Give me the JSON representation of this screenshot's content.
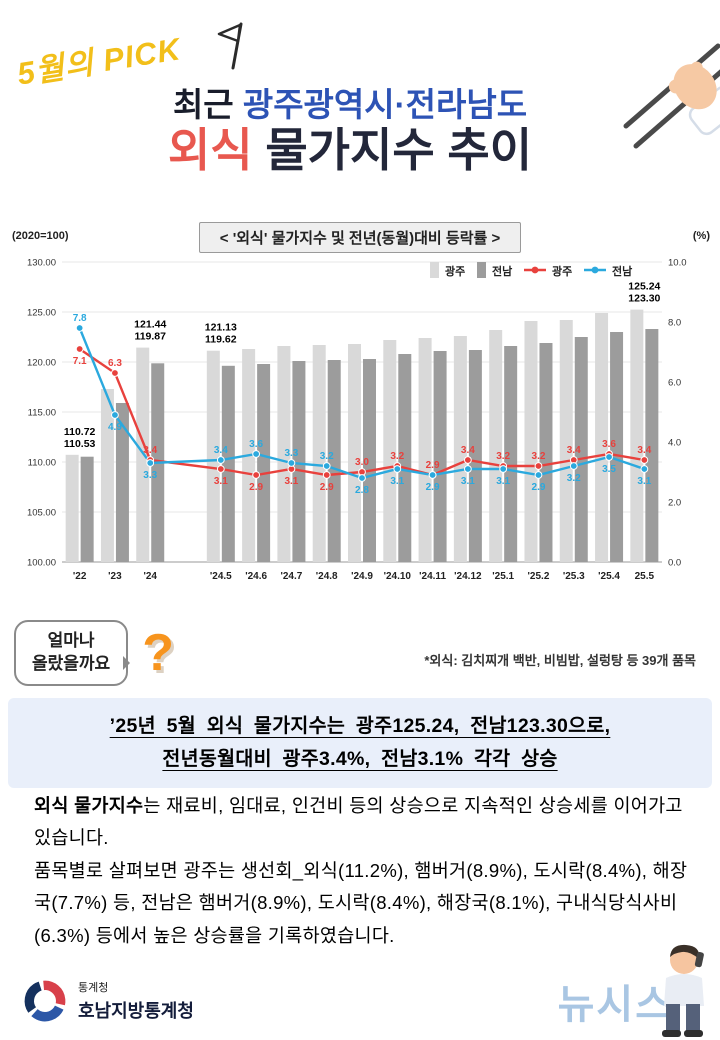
{
  "badge": {
    "text": "5월의 PICK"
  },
  "title": {
    "line1_prefix": "최근 ",
    "line1_highlight": "광주광역시·전라남도",
    "line2_highlight": "외식",
    "line2_rest": " 물가지수 추이"
  },
  "chart": {
    "unit_left": "(2020=100)",
    "unit_right": "(%)",
    "box_title": "< '외식' 물가지수 및 전년(동월)대비 등락률 >"
  },
  "chart_data": {
    "type": "bar+line",
    "title": "'외식' 물가지수 및 전년(동월)대비 등락률",
    "categories": [
      "'22",
      "'23",
      "'24",
      "'24.5",
      "'24.6",
      "'24.7",
      "'24.8",
      "'24.9",
      "'24.10",
      "'24.11",
      "'24.12",
      "'25.1",
      "'25.2",
      "'25.3",
      "'25.4",
      "25.5"
    ],
    "gap_after_index": 2,
    "gap_units": 1.0,
    "left_axis": {
      "min": 100,
      "max": 130,
      "ticks": [
        {
          "v": 130,
          "label": "130.00"
        },
        {
          "v": 125,
          "label": "125.00"
        },
        {
          "v": 120,
          "label": "120.00"
        },
        {
          "v": 115,
          "label": "115.00"
        },
        {
          "v": 110,
          "label": "110.00"
        },
        {
          "v": 105,
          "label": "105.00"
        },
        {
          "v": 100,
          "label": "100.00"
        }
      ]
    },
    "right_axis": {
      "min": 0,
      "max": 10,
      "ticks": [
        {
          "v": 10,
          "label": "10.0"
        },
        {
          "v": 8,
          "label": "8.0"
        },
        {
          "v": 6,
          "label": "6.0"
        },
        {
          "v": 4,
          "label": "4.0"
        },
        {
          "v": 2,
          "label": "2.0"
        },
        {
          "v": 0,
          "label": "0.0"
        }
      ]
    },
    "bar_series": [
      {
        "name": "광주",
        "color": "#d9d9d9",
        "values": [
          110.72,
          117.3,
          121.44,
          121.13,
          121.3,
          121.6,
          121.7,
          121.8,
          122.2,
          122.4,
          122.6,
          123.2,
          124.1,
          124.2,
          124.9,
          125.24
        ]
      },
      {
        "name": "전남",
        "color": "#9c9c9c",
        "values": [
          110.53,
          115.9,
          119.87,
          119.62,
          119.8,
          120.1,
          120.2,
          120.3,
          120.8,
          121.1,
          121.2,
          121.6,
          121.9,
          122.5,
          123.0,
          123.3
        ]
      }
    ],
    "bar_value_labels": {
      "0": [
        "110.72",
        "110.53"
      ],
      "2": [
        "121.44",
        "119.87"
      ],
      "3": [
        "121.13",
        "119.62"
      ],
      "15": [
        "125.24",
        "123.30"
      ]
    },
    "line_series": [
      {
        "name": "광주",
        "color": "#e8413d",
        "values": [
          7.1,
          6.3,
          3.4,
          3.1,
          2.9,
          3.1,
          2.9,
          3.0,
          3.2,
          2.9,
          3.4,
          3.2,
          3.2,
          3.4,
          3.6,
          3.4
        ]
      },
      {
        "name": "전남",
        "color": "#2ba9de",
        "values": [
          7.8,
          4.9,
          3.3,
          3.4,
          3.6,
          3.3,
          3.2,
          2.8,
          3.1,
          2.9,
          3.1,
          3.1,
          2.9,
          3.2,
          3.5,
          3.1
        ]
      }
    ],
    "legend": [
      {
        "label": "광주",
        "type": "bar",
        "color": "#d9d9d9"
      },
      {
        "label": "전남",
        "type": "bar",
        "color": "#9c9c9c"
      },
      {
        "label": "광주",
        "type": "line",
        "color": "#e8413d"
      },
      {
        "label": "전남",
        "type": "line",
        "color": "#2ba9de"
      }
    ]
  },
  "note": "*외식: 김치찌개 백반, 비빔밥, 설렁탕 등 39개 품목",
  "bubble": {
    "line1": "얼마나",
    "line2": "올랐을까요",
    "question_mark": "?"
  },
  "highlight": {
    "line1": "’25년 5월 외식 물가지수는 광주125.24, 전남123.30으로,",
    "line2": "전년동월대비 광주3.4%, 전남3.1% 각각 상승"
  },
  "body": {
    "p1_bold": "외식 물가지수",
    "p1_rest": "는 재료비, 임대료, 인건비 등의 상승으로 지속적인 상승세를 이어가고 있습니다.",
    "p2": "품목별로 살펴보면 광주는 생선회_외식(11.2%), 햄버거(8.9%), 도시락(8.4%), 해장국(7.7%) 등, 전남은 햄버거(8.9%), 도시락(8.4%), 해장국(8.1%), 구내식당식사비 (6.3%) 등에서 높은 상승률을 기록하였습니다."
  },
  "footer": {
    "agency_small": "통계청",
    "agency_large": "호남지방통계청"
  },
  "watermark": "뉴시스"
}
